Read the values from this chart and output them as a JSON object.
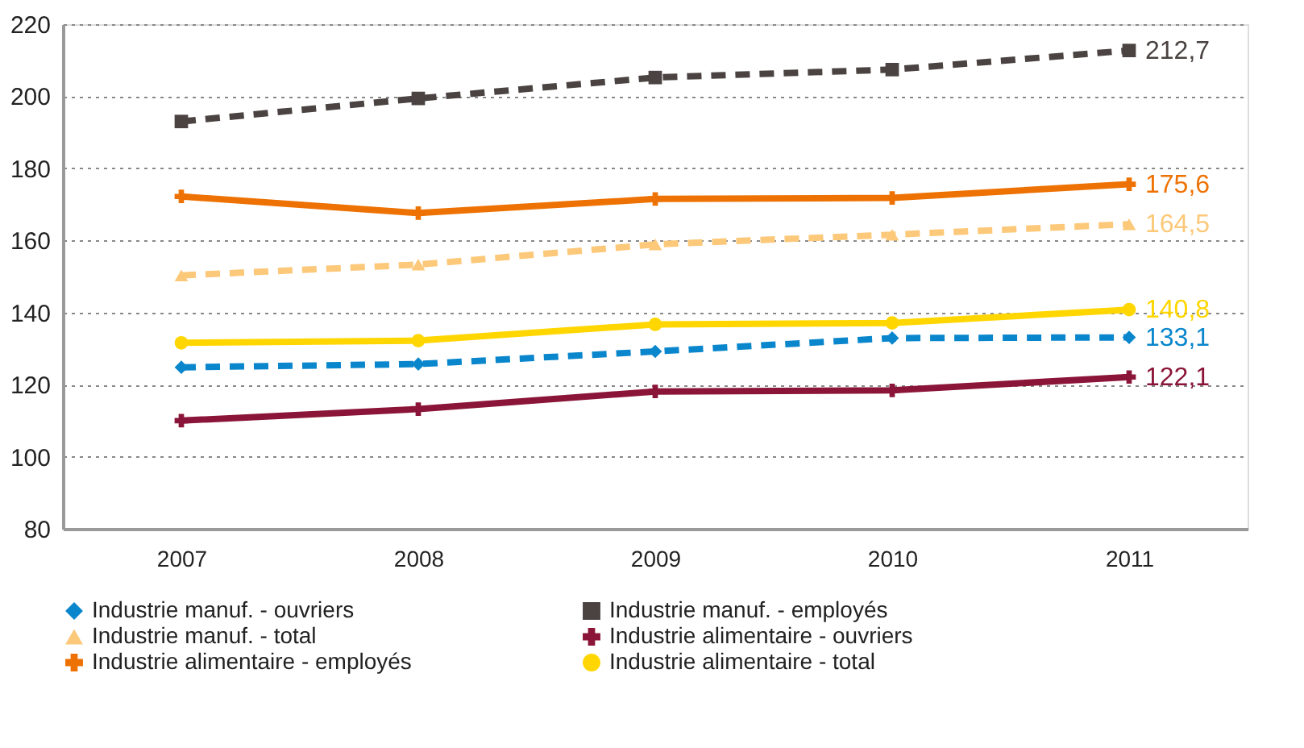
{
  "chart_data": {
    "type": "line",
    "categories": [
      "2007",
      "2008",
      "2009",
      "2010",
      "2011"
    ],
    "ylim": [
      80,
      220
    ],
    "yticks": [
      80,
      100,
      120,
      140,
      160,
      180,
      200,
      220
    ],
    "grid": "y",
    "legend": "bottom",
    "series": [
      {
        "name": "Industrie manuf. - ouvriers",
        "color": "#0a86cc",
        "marker": "diamond",
        "line_style": "dashed",
        "values": [
          124.8,
          125.7,
          129.2,
          132.9,
          133.1
        ],
        "value_labels": [
          null,
          null,
          null,
          null,
          "133,1"
        ]
      },
      {
        "name": "Industrie manuf. - employés",
        "color": "#4a4341",
        "marker": "square",
        "line_style": "dashed",
        "values": [
          193.0,
          199.4,
          205.2,
          207.4,
          212.7
        ],
        "value_labels": [
          null,
          null,
          null,
          null,
          "212,7"
        ]
      },
      {
        "name": "Industrie manuf. - total",
        "color": "#fcc879",
        "marker": "triangle",
        "line_style": "dashed",
        "values": [
          150.3,
          153.3,
          158.9,
          161.6,
          164.5
        ],
        "value_labels": [
          null,
          null,
          null,
          null,
          "164,5"
        ]
      },
      {
        "name": "Industrie alimentaire - ouvriers",
        "color": "#8b1538",
        "marker": "cross",
        "line_style": "solid",
        "values": [
          110.0,
          113.2,
          118.1,
          118.4,
          122.1
        ],
        "value_labels": [
          null,
          null,
          null,
          null,
          "122,1"
        ]
      },
      {
        "name": "Industrie alimentaire  - employés",
        "color": "#ee7203",
        "marker": "cross",
        "line_style": "solid",
        "values": [
          172.2,
          167.6,
          171.5,
          171.8,
          175.6
        ],
        "value_labels": [
          null,
          null,
          null,
          null,
          "175,6"
        ]
      },
      {
        "name": "Industrie alimentaire - total",
        "color": "#ffd600",
        "marker": "circle",
        "line_style": "solid",
        "values": [
          131.6,
          132.2,
          136.7,
          137.1,
          140.8
        ],
        "value_labels": [
          null,
          null,
          null,
          null,
          "140,8"
        ]
      }
    ]
  }
}
